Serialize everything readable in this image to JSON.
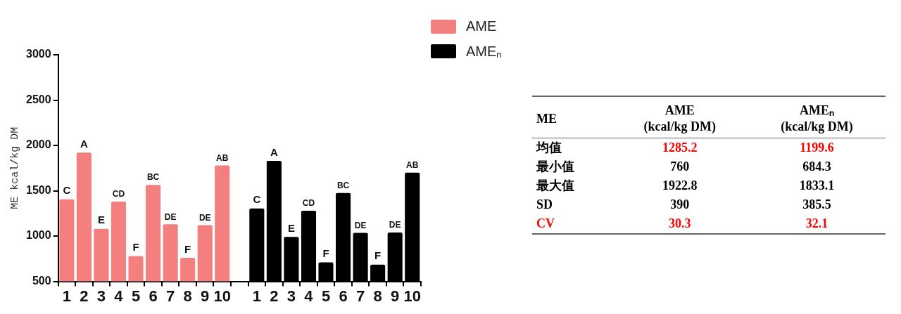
{
  "chart_data": [
    {
      "type": "bar",
      "ylabel": "ME kcal/kg DM",
      "categories": [
        "1",
        "2",
        "3",
        "4",
        "5",
        "6",
        "7",
        "8",
        "9",
        "10",
        null,
        "1",
        "2",
        "3",
        "4",
        "5",
        "6",
        "7",
        "8",
        "9",
        "10"
      ],
      "series": [
        {
          "name": "AME",
          "color": "#f47f7f",
          "values": [
            1405,
            1920,
            1080,
            1380,
            780,
            1565,
            1130,
            760,
            1120,
            1780,
            null,
            null,
            null,
            null,
            null,
            null,
            null,
            null,
            null,
            null,
            null
          ],
          "value_labels": [
            "C",
            "A",
            "E",
            "CD",
            "F",
            "BC",
            "DE",
            "F",
            "DE",
            "AB",
            null,
            null,
            null,
            null,
            null,
            null,
            null,
            null,
            null,
            null,
            null
          ]
        },
        {
          "name": "AMEₙ",
          "color": "#000000",
          "values": [
            null,
            null,
            null,
            null,
            null,
            null,
            null,
            null,
            null,
            null,
            null,
            1305,
            1830,
            990,
            1280,
            710,
            1475,
            1035,
            685,
            1040,
            1700
          ],
          "value_labels": [
            null,
            null,
            null,
            null,
            null,
            null,
            null,
            null,
            null,
            null,
            null,
            "C",
            "A",
            "E",
            "CD",
            "F",
            "BC",
            "DE",
            "F",
            "DE",
            "AB"
          ]
        }
      ],
      "ylim": [
        500,
        3000
      ],
      "yticks": [
        500,
        1000,
        1500,
        2000,
        2500,
        3000
      ],
      "grid": false,
      "legend": "top right"
    },
    {
      "type": "other",
      "categories": [
        "ME",
        "AME\n(kcal/kg DM)",
        "AMEₙ\n(kcal/kg DM)"
      ],
      "y_categories": [
        "均值",
        "最小值",
        "最大值",
        "SD",
        "CV"
      ],
      "cell_labels": [
        [
          "1285.2",
          "1199.6"
        ],
        [
          "760",
          "684.3"
        ],
        [
          "1922.8",
          "1833.1"
        ],
        [
          "390",
          "385.5"
        ],
        [
          "30.3",
          "32.1"
        ]
      ],
      "colors": [
        "#ff0000",
        null,
        null,
        null,
        "#ff0000"
      ]
    }
  ]
}
